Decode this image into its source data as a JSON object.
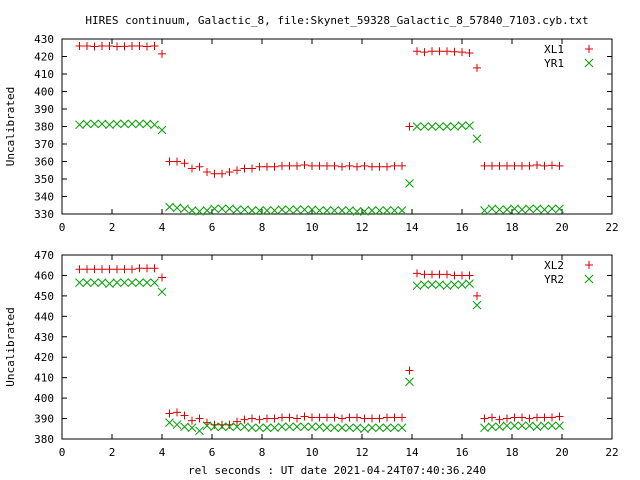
{
  "title": "HIRES continuum, Galactic_8, file:Skynet_59328_Galactic_8_57840_7103.cyb.txt",
  "xlabel": "rel seconds : UT date 2021-04-24T07:40:36.240",
  "colors": {
    "red": "#e00000",
    "green": "#00a000"
  },
  "chart_data": [
    {
      "type": "scatter",
      "ylabel": "Uncalibrated",
      "xlim": [
        0,
        22
      ],
      "ylim": [
        330,
        430
      ],
      "xticks": [
        0,
        2,
        4,
        6,
        8,
        10,
        12,
        14,
        16,
        18,
        20,
        22
      ],
      "yticks": [
        330,
        340,
        350,
        360,
        370,
        380,
        390,
        400,
        410,
        420,
        430
      ],
      "legend": "top-right",
      "series": [
        {
          "name": "XL1",
          "marker": "plus",
          "color": "#e00000",
          "points": [
            [
              0.7,
              426
            ],
            [
              1.0,
              426
            ],
            [
              1.3,
              425.7
            ],
            [
              1.6,
              426
            ],
            [
              1.9,
              426
            ],
            [
              2.2,
              425.7
            ],
            [
              2.5,
              425.8
            ],
            [
              2.8,
              426
            ],
            [
              3.1,
              426
            ],
            [
              3.4,
              425.7
            ],
            [
              3.7,
              426
            ],
            [
              4.0,
              421.5
            ],
            [
              4.3,
              360
            ],
            [
              4.6,
              360
            ],
            [
              4.9,
              359
            ],
            [
              5.2,
              356
            ],
            [
              5.5,
              357
            ],
            [
              5.8,
              354
            ],
            [
              6.1,
              353
            ],
            [
              6.4,
              353
            ],
            [
              6.7,
              354
            ],
            [
              7.0,
              355
            ],
            [
              7.3,
              356
            ],
            [
              7.6,
              356
            ],
            [
              7.9,
              357
            ],
            [
              8.2,
              357
            ],
            [
              8.5,
              357
            ],
            [
              8.8,
              357.5
            ],
            [
              9.1,
              357.5
            ],
            [
              9.4,
              357.5
            ],
            [
              9.7,
              358
            ],
            [
              10.0,
              357.5
            ],
            [
              10.3,
              357.5
            ],
            [
              10.6,
              357.5
            ],
            [
              10.9,
              357.5
            ],
            [
              11.2,
              357
            ],
            [
              11.5,
              357.5
            ],
            [
              11.8,
              357
            ],
            [
              12.1,
              357.5
            ],
            [
              12.4,
              357
            ],
            [
              12.7,
              357
            ],
            [
              13.0,
              357
            ],
            [
              13.3,
              357.5
            ],
            [
              13.6,
              357.5
            ],
            [
              13.9,
              380
            ],
            [
              14.2,
              423
            ],
            [
              14.5,
              422.5
            ],
            [
              14.8,
              423
            ],
            [
              15.1,
              423
            ],
            [
              15.4,
              423
            ],
            [
              15.7,
              422.7
            ],
            [
              16.0,
              422.5
            ],
            [
              16.3,
              422
            ],
            [
              16.6,
              413.5
            ],
            [
              16.9,
              357.5
            ],
            [
              17.2,
              357.5
            ],
            [
              17.5,
              357.5
            ],
            [
              17.8,
              357.5
            ],
            [
              18.1,
              357.5
            ],
            [
              18.4,
              357.5
            ],
            [
              18.7,
              357.5
            ],
            [
              19.0,
              358
            ],
            [
              19.3,
              357.5
            ],
            [
              19.6,
              357.8
            ],
            [
              19.9,
              357.5
            ]
          ]
        },
        {
          "name": "YR1",
          "marker": "cross",
          "color": "#00a000",
          "points": [
            [
              0.7,
              381
            ],
            [
              1.0,
              381.5
            ],
            [
              1.3,
              381.5
            ],
            [
              1.6,
              381.5
            ],
            [
              1.9,
              381
            ],
            [
              2.2,
              381.5
            ],
            [
              2.5,
              381.5
            ],
            [
              2.8,
              381.5
            ],
            [
              3.1,
              381.5
            ],
            [
              3.4,
              381.5
            ],
            [
              3.7,
              381
            ],
            [
              4.0,
              378
            ],
            [
              4.3,
              334
            ],
            [
              4.6,
              333.5
            ],
            [
              4.9,
              333
            ],
            [
              5.2,
              332
            ],
            [
              5.5,
              331.5
            ],
            [
              5.8,
              332
            ],
            [
              6.1,
              333
            ],
            [
              6.4,
              333
            ],
            [
              6.7,
              333
            ],
            [
              7.0,
              332.5
            ],
            [
              7.3,
              332.5
            ],
            [
              7.6,
              332
            ],
            [
              7.9,
              332
            ],
            [
              8.2,
              332
            ],
            [
              8.5,
              332
            ],
            [
              8.8,
              332.5
            ],
            [
              9.1,
              332.5
            ],
            [
              9.4,
              332.5
            ],
            [
              9.7,
              332.5
            ],
            [
              10.0,
              332.5
            ],
            [
              10.3,
              332
            ],
            [
              10.6,
              332
            ],
            [
              10.9,
              332
            ],
            [
              11.2,
              332
            ],
            [
              11.5,
              332
            ],
            [
              11.8,
              331.5
            ],
            [
              12.1,
              331.5
            ],
            [
              12.4,
              332
            ],
            [
              12.7,
              332
            ],
            [
              13.0,
              332
            ],
            [
              13.3,
              332
            ],
            [
              13.6,
              332
            ],
            [
              13.9,
              347.5
            ],
            [
              14.2,
              380
            ],
            [
              14.5,
              380
            ],
            [
              14.8,
              380
            ],
            [
              15.1,
              380
            ],
            [
              15.4,
              380
            ],
            [
              15.7,
              380
            ],
            [
              16.0,
              380.5
            ],
            [
              16.3,
              380.5
            ],
            [
              16.6,
              373
            ],
            [
              16.9,
              332
            ],
            [
              17.2,
              333
            ],
            [
              17.5,
              332.5
            ],
            [
              17.8,
              332.5
            ],
            [
              18.1,
              333
            ],
            [
              18.4,
              332.5
            ],
            [
              18.7,
              333
            ],
            [
              19.0,
              333
            ],
            [
              19.3,
              332.5
            ],
            [
              19.6,
              333
            ],
            [
              19.9,
              333
            ]
          ]
        }
      ]
    },
    {
      "type": "scatter",
      "ylabel": "Uncalibrated",
      "xlim": [
        0,
        22
      ],
      "ylim": [
        380,
        470
      ],
      "xticks": [
        0,
        2,
        4,
        6,
        8,
        10,
        12,
        14,
        16,
        18,
        20,
        22
      ],
      "yticks": [
        380,
        390,
        400,
        410,
        420,
        430,
        440,
        450,
        460,
        470
      ],
      "legend": "top-right",
      "series": [
        {
          "name": "XL2",
          "marker": "plus",
          "color": "#e00000",
          "points": [
            [
              0.7,
              463
            ],
            [
              1.0,
              463
            ],
            [
              1.3,
              463
            ],
            [
              1.6,
              463
            ],
            [
              1.9,
              463
            ],
            [
              2.2,
              463
            ],
            [
              2.5,
              463
            ],
            [
              2.8,
              463
            ],
            [
              3.1,
              463.5
            ],
            [
              3.4,
              463.5
            ],
            [
              3.7,
              463.5
            ],
            [
              4.0,
              459
            ],
            [
              4.3,
              392.5
            ],
            [
              4.6,
              393
            ],
            [
              4.9,
              391.5
            ],
            [
              5.2,
              389
            ],
            [
              5.5,
              390
            ],
            [
              5.8,
              388
            ],
            [
              6.1,
              387
            ],
            [
              6.4,
              387
            ],
            [
              6.7,
              387
            ],
            [
              7.0,
              388.5
            ],
            [
              7.3,
              389.5
            ],
            [
              7.6,
              390
            ],
            [
              7.9,
              389.5
            ],
            [
              8.2,
              390
            ],
            [
              8.5,
              390
            ],
            [
              8.8,
              390.5
            ],
            [
              9.1,
              390.5
            ],
            [
              9.4,
              390
            ],
            [
              9.7,
              391
            ],
            [
              10.0,
              390.5
            ],
            [
              10.3,
              390.5
            ],
            [
              10.6,
              390.5
            ],
            [
              10.9,
              390.5
            ],
            [
              11.2,
              390
            ],
            [
              11.5,
              390.5
            ],
            [
              11.8,
              390.5
            ],
            [
              12.1,
              390
            ],
            [
              12.4,
              390
            ],
            [
              12.7,
              390
            ],
            [
              13.0,
              390.5
            ],
            [
              13.3,
              390.5
            ],
            [
              13.6,
              390.5
            ],
            [
              13.9,
              413.5
            ],
            [
              14.2,
              461
            ],
            [
              14.5,
              460.5
            ],
            [
              14.8,
              460.5
            ],
            [
              15.1,
              460.5
            ],
            [
              15.4,
              460.5
            ],
            [
              15.7,
              460
            ],
            [
              16.0,
              460
            ],
            [
              16.3,
              460
            ],
            [
              16.6,
              450
            ],
            [
              16.9,
              390
            ],
            [
              17.2,
              390.5
            ],
            [
              17.5,
              389.5
            ],
            [
              17.8,
              390
            ],
            [
              18.1,
              390.5
            ],
            [
              18.4,
              390.5
            ],
            [
              18.7,
              390
            ],
            [
              19.0,
              390.5
            ],
            [
              19.3,
              390.5
            ],
            [
              19.6,
              390.5
            ],
            [
              19.9,
              391
            ]
          ]
        },
        {
          "name": "YR2",
          "marker": "cross",
          "color": "#00a000",
          "points": [
            [
              0.7,
              456.5
            ],
            [
              1.0,
              456.5
            ],
            [
              1.3,
              456.5
            ],
            [
              1.6,
              456.5
            ],
            [
              1.9,
              456
            ],
            [
              2.2,
              456.5
            ],
            [
              2.5,
              456.5
            ],
            [
              2.8,
              456.5
            ],
            [
              3.1,
              456.5
            ],
            [
              3.4,
              456.5
            ],
            [
              3.7,
              456.5
            ],
            [
              4.0,
              452
            ],
            [
              4.3,
              388
            ],
            [
              4.6,
              387
            ],
            [
              4.9,
              386
            ],
            [
              5.2,
              385.5
            ],
            [
              5.5,
              384
            ],
            [
              5.8,
              386.5
            ],
            [
              6.1,
              386
            ],
            [
              6.4,
              386
            ],
            [
              6.7,
              386
            ],
            [
              7.0,
              386
            ],
            [
              7.3,
              386
            ],
            [
              7.6,
              385.5
            ],
            [
              7.9,
              385.5
            ],
            [
              8.2,
              385.5
            ],
            [
              8.5,
              385.5
            ],
            [
              8.8,
              386
            ],
            [
              9.1,
              386
            ],
            [
              9.4,
              386
            ],
            [
              9.7,
              386
            ],
            [
              10.0,
              386
            ],
            [
              10.3,
              386
            ],
            [
              10.6,
              385.5
            ],
            [
              10.9,
              385.5
            ],
            [
              11.2,
              385.5
            ],
            [
              11.5,
              385.5
            ],
            [
              11.8,
              385.5
            ],
            [
              12.1,
              385
            ],
            [
              12.4,
              385.5
            ],
            [
              12.7,
              385.5
            ],
            [
              13.0,
              385.5
            ],
            [
              13.3,
              385.5
            ],
            [
              13.6,
              385.5
            ],
            [
              13.9,
              408
            ],
            [
              14.2,
              455
            ],
            [
              14.5,
              455.5
            ],
            [
              14.8,
              455.5
            ],
            [
              15.1,
              455.5
            ],
            [
              15.4,
              455
            ],
            [
              15.7,
              455.5
            ],
            [
              16.0,
              455.5
            ],
            [
              16.3,
              456
            ],
            [
              16.6,
              445.5
            ],
            [
              16.9,
              385.5
            ],
            [
              17.2,
              386
            ],
            [
              17.5,
              386
            ],
            [
              17.8,
              386.5
            ],
            [
              18.1,
              386.5
            ],
            [
              18.4,
              386.5
            ],
            [
              18.7,
              386.5
            ],
            [
              19.0,
              386
            ],
            [
              19.3,
              386.5
            ],
            [
              19.6,
              386.5
            ],
            [
              19.9,
              386.5
            ]
          ]
        }
      ]
    }
  ]
}
